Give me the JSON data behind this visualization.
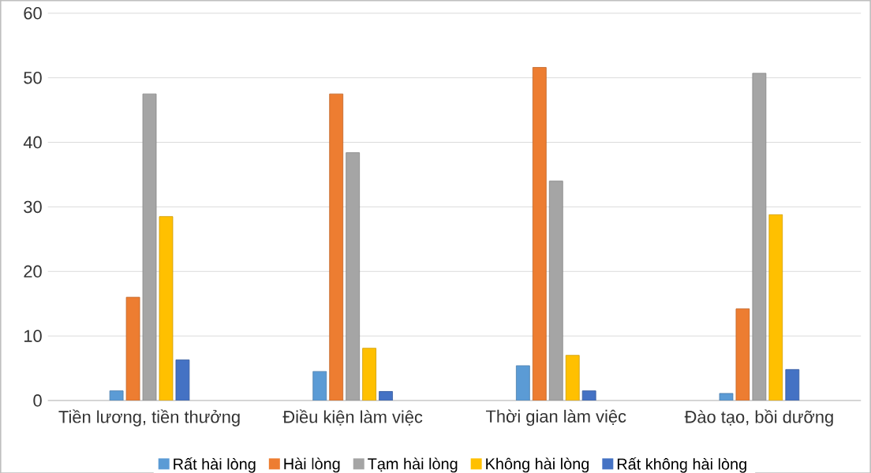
{
  "chart_data": {
    "type": "bar",
    "categories": [
      "Tiền lương, tiền thưởng",
      "Điều kiện làm việc",
      "Thời gian làm việc",
      "Đào tạo, bồi dưỡng"
    ],
    "series": [
      {
        "name": "Rất hài lòng",
        "color": "#5b9bd5",
        "values": [
          1.5,
          4.5,
          5.4,
          1.1
        ]
      },
      {
        "name": "Hài lòng",
        "color": "#ed7d31",
        "values": [
          16,
          47.5,
          51.6,
          14.2
        ]
      },
      {
        "name": "Tạm hài lòng",
        "color": "#a5a5a5",
        "values": [
          47.5,
          38.4,
          34,
          50.7
        ]
      },
      {
        "name": "Không hài lòng",
        "color": "#ffc000",
        "values": [
          28.5,
          8.1,
          7,
          28.8
        ]
      },
      {
        "name": "Rất không hài lòng",
        "color": "#4472c4",
        "values": [
          6.3,
          1.4,
          1.5,
          4.8
        ]
      }
    ],
    "ylim": [
      0,
      60
    ],
    "yticks": [
      0,
      10,
      20,
      30,
      40,
      50,
      60
    ],
    "grid": "y",
    "legend": "bottom"
  }
}
